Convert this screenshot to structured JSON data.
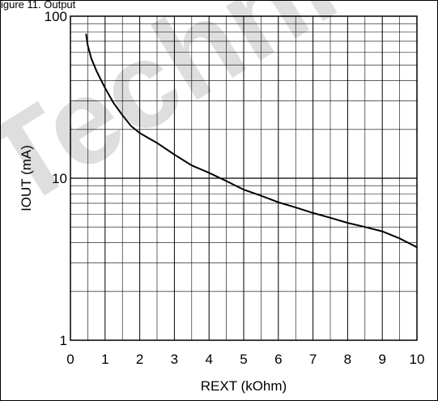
{
  "caption_fragment": "igure 11. Output",
  "watermark": "Techni",
  "chart_data": {
    "type": "line",
    "title": "",
    "xlabel": "REXT (kOhm)",
    "ylabel": "IOUT (mA)",
    "xlim": [
      0,
      10
    ],
    "ylim": [
      1,
      100
    ],
    "y_scale": "log",
    "x_ticks": [
      "0",
      "1",
      "2",
      "3",
      "4",
      "5",
      "6",
      "7",
      "8",
      "9",
      "10"
    ],
    "y_ticks": [
      "1",
      "10",
      "100"
    ],
    "grid": true,
    "series": [
      {
        "x": [
          0.45,
          0.5,
          0.6,
          0.75,
          1.0,
          1.25,
          1.5,
          1.75,
          2.0,
          2.25,
          2.5,
          3.0,
          3.5,
          4.0,
          4.5,
          5.0,
          5.5,
          6.0,
          6.5,
          7.0,
          7.5,
          8.0,
          8.5,
          9.0,
          9.5,
          10.0
        ],
        "y": [
          78,
          66,
          55,
          46,
          36,
          29,
          24.5,
          21,
          19,
          17.7,
          16.5,
          14,
          12,
          10.8,
          9.6,
          8.5,
          7.8,
          7.1,
          6.6,
          6.1,
          5.7,
          5.3,
          5.0,
          4.7,
          4.25,
          3.75
        ],
        "color": "#000000"
      }
    ]
  }
}
